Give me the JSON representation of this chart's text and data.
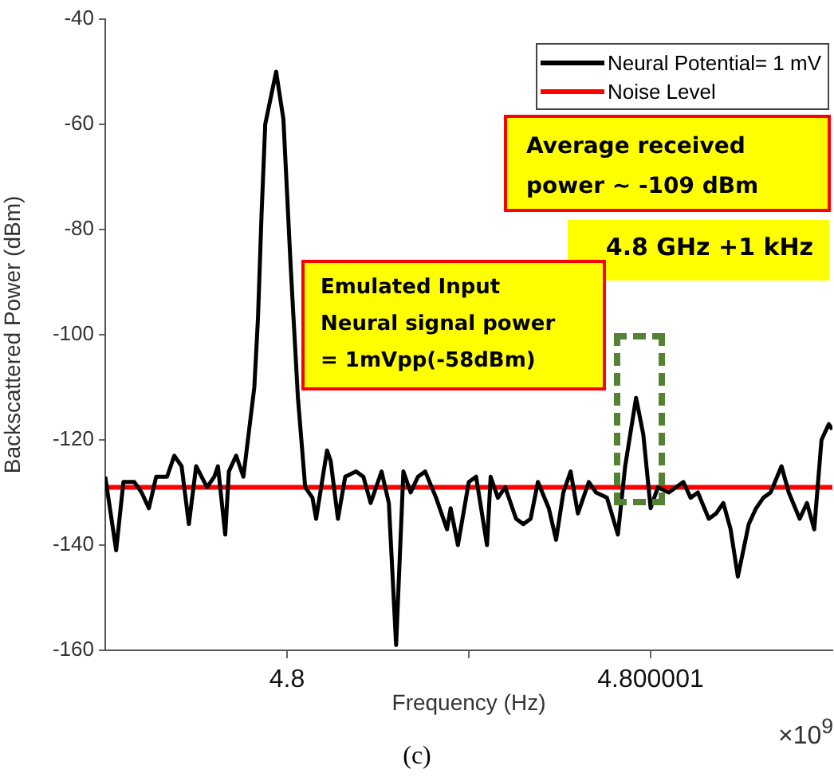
{
  "chart_data": {
    "type": "line",
    "xlabel": "Frequency (Hz)",
    "ylabel": "Backscattered Power (dBm)",
    "xlim": [
      4.7999995,
      4.8000015
    ],
    "xticks": [
      {
        "value": 4.8,
        "label": "4.8"
      },
      {
        "value": 4.8000005,
        "label": null
      },
      {
        "value": 4.800001,
        "label": "4.800001"
      }
    ],
    "ylim": [
      -160,
      -40
    ],
    "yticks": [
      -160,
      -140,
      -120,
      -100,
      -80,
      -60,
      -40
    ],
    "grid": false,
    "legend": "top right",
    "marker": "none",
    "line_style": "solid",
    "series": [
      {
        "name": "Neural Potential= 1 mV",
        "color": "#000000",
        "x": [
          4.7999995,
          4.79999953,
          4.79999955,
          4.79999958,
          4.7999996,
          4.79999962,
          4.79999964,
          4.79999967,
          4.79999969,
          4.79999971,
          4.79999973,
          4.79999975,
          4.79999978,
          4.7999998,
          4.79999981,
          4.79999983,
          4.79999984,
          4.79999986,
          4.79999988,
          4.79999991,
          4.79999992,
          4.79999993,
          4.79999994,
          4.79999997,
          4.79999999,
          4.80000001,
          4.80000003,
          4.80000005,
          4.80000007,
          4.80000008,
          4.80000011,
          4.80000012,
          4.80000014,
          4.80000016,
          4.80000019,
          4.80000021,
          4.80000023,
          4.80000026,
          4.80000028,
          4.8000003,
          4.80000032,
          4.80000034,
          4.80000036,
          4.80000038,
          4.80000041,
          4.80000044,
          4.80000045,
          4.80000047,
          4.8000005,
          4.80000052,
          4.80000055,
          4.80000056,
          4.80000058,
          4.8000006,
          4.80000063,
          4.80000065,
          4.80000067,
          4.80000069,
          4.80000072,
          4.80000074,
          4.80000076,
          4.80000078,
          4.8000008,
          4.80000083,
          4.80000085,
          4.80000088,
          4.80000091,
          4.80000093,
          4.80000096,
          4.80000098,
          4.800001,
          4.80000102,
          4.80000105,
          4.80000109,
          4.80000111,
          4.80000113,
          4.80000116,
          4.80000118,
          4.8000012,
          4.80000122,
          4.80000124,
          4.80000127,
          4.80000129,
          4.80000131,
          4.80000133,
          4.80000136,
          4.80000138,
          4.80000141,
          4.80000143,
          4.80000145,
          4.80000147,
          4.80000149,
          4.8000015
        ],
        "values": [
          -127,
          -141,
          -128,
          -128,
          -130,
          -133,
          -127,
          -127,
          -123,
          -125,
          -136,
          -125,
          -129,
          -127,
          -125,
          -138,
          -126,
          -123,
          -127,
          -110,
          -97,
          -77,
          -60,
          -50,
          -59,
          -87,
          -112,
          -129,
          -131,
          -135,
          -122,
          -124,
          -135,
          -127,
          -126,
          -127,
          -132,
          -126,
          -132,
          -159,
          -126,
          -130,
          -127,
          -126,
          -131,
          -137,
          -133,
          -140,
          -128,
          -127,
          -140,
          -127,
          -131,
          -129,
          -135,
          -136,
          -135,
          -128,
          -133,
          -139,
          -130,
          -126,
          -134,
          -128,
          -130,
          -131,
          -138,
          -125,
          -112,
          -119,
          -133,
          -129,
          -130,
          -128,
          -131,
          -130,
          -135,
          -134,
          -132,
          -137,
          -146,
          -136,
          -133,
          -131,
          -130,
          -125,
          -130,
          -135,
          -132,
          -137,
          -120,
          -117,
          -118
        ]
      },
      {
        "name": "Noise Level",
        "color": "#ff0000",
        "x": [
          4.7999995,
          4.8000015
        ],
        "values": [
          -129,
          -129
        ]
      }
    ],
    "annotations": [
      "Average received power ~ -109 dBm",
      "4.8 GHz +1 kHz",
      "Emulated Input\nNeural signal power\n= 1mVpp(-58dBm)",
      "×10$^{9}$",
      "(c)"
    ]
  }
}
